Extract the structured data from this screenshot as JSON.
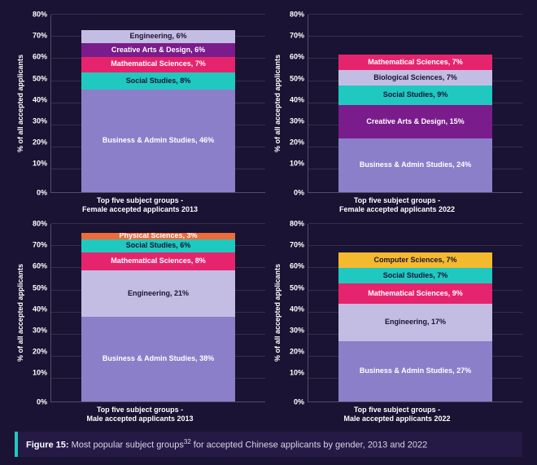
{
  "background_color": "#1a1333",
  "ylabel": "% of all accepted applicants",
  "axis": {
    "ymax_pct": 80,
    "ticks": [
      80,
      70,
      60,
      50,
      40,
      30,
      20,
      10,
      0
    ],
    "tick_suffix": "%",
    "grid_color": "rgba(255,255,255,0.12)",
    "tick_fontsize": 9,
    "label_fontsize": 9,
    "text_color": "#ffffff"
  },
  "colors": {
    "business": "#8c7fc9",
    "social": "#1fc9c0",
    "math": "#e6246d",
    "creative": "#7a1c8c",
    "engineering_light": "#c4bde3",
    "engineering_f2013": "#c4bde3",
    "biological": "#c4bde3",
    "physical": "#f06a3a",
    "computer": "#f5b92e"
  },
  "charts": [
    {
      "xlabel": "Top five subject groups -\nFemale accepted applicants 2013",
      "segments": [
        {
          "label": "Business & Admin Studies, 46%",
          "value": 46,
          "color": "#8c7fc9",
          "dark_text": false
        },
        {
          "label": "Social Studies, 8%",
          "value": 8,
          "color": "#1fc9c0",
          "dark_text": true
        },
        {
          "label": "Mathematical Sciences, 7%",
          "value": 7,
          "color": "#e6246d",
          "dark_text": false
        },
        {
          "label": "Creative Arts & Design, 6%",
          "value": 6,
          "color": "#7a1c8c",
          "dark_text": false
        },
        {
          "label": "Engineering, 6%",
          "value": 6,
          "color": "#c4bde3",
          "dark_text": true
        }
      ]
    },
    {
      "xlabel": "Top five subject groups -\nFemale accepted applicants 2022",
      "segments": [
        {
          "label": "Business & Admin Studies, 24%",
          "value": 24,
          "color": "#8c7fc9",
          "dark_text": false
        },
        {
          "label": "Creative Arts & Design, 15%",
          "value": 15,
          "color": "#7a1c8c",
          "dark_text": false
        },
        {
          "label": "Social Studies, 9%",
          "value": 9,
          "color": "#1fc9c0",
          "dark_text": true
        },
        {
          "label": "Biological Sciences, 7%",
          "value": 7,
          "color": "#c4bde3",
          "dark_text": true
        },
        {
          "label": "Mathematical Sciences, 7%",
          "value": 7,
          "color": "#e6246d",
          "dark_text": false
        }
      ]
    },
    {
      "xlabel": "Top five subject groups -\nMale accepted applicants 2013",
      "segments": [
        {
          "label": "Business & Admin Studies, 38%",
          "value": 38,
          "color": "#8c7fc9",
          "dark_text": false
        },
        {
          "label": "Engineering, 21%",
          "value": 21,
          "color": "#c4bde3",
          "dark_text": true
        },
        {
          "label": "Mathematical Sciences, 8%",
          "value": 8,
          "color": "#e6246d",
          "dark_text": false
        },
        {
          "label": "Social Studies, 6%",
          "value": 6,
          "color": "#1fc9c0",
          "dark_text": true
        },
        {
          "label": "Physical Sciences, 3%",
          "value": 3,
          "color": "#f06a3a",
          "dark_text": false
        }
      ]
    },
    {
      "xlabel": "Top five subject groups -\nMale accepted applicants 2022",
      "segments": [
        {
          "label": "Business & Admin Studies, 27%",
          "value": 27,
          "color": "#8c7fc9",
          "dark_text": false
        },
        {
          "label": "Engineering, 17%",
          "value": 17,
          "color": "#c4bde3",
          "dark_text": true
        },
        {
          "label": "Mathematical Sciences, 9%",
          "value": 9,
          "color": "#e6246d",
          "dark_text": false
        },
        {
          "label": "Social Studies, 7%",
          "value": 7,
          "color": "#1fc9c0",
          "dark_text": true
        },
        {
          "label": "Computer Sciences, 7%",
          "value": 7,
          "color": "#f5b92e",
          "dark_text": true
        }
      ]
    }
  ],
  "caption": {
    "prefix": "Figure 15:",
    "text": " Most popular subject groups",
    "sup": "32",
    "suffix": " for accepted Chinese applicants by gender, 2013 and 2022",
    "bg": "#241a45",
    "accent": "#1fc9c0"
  }
}
